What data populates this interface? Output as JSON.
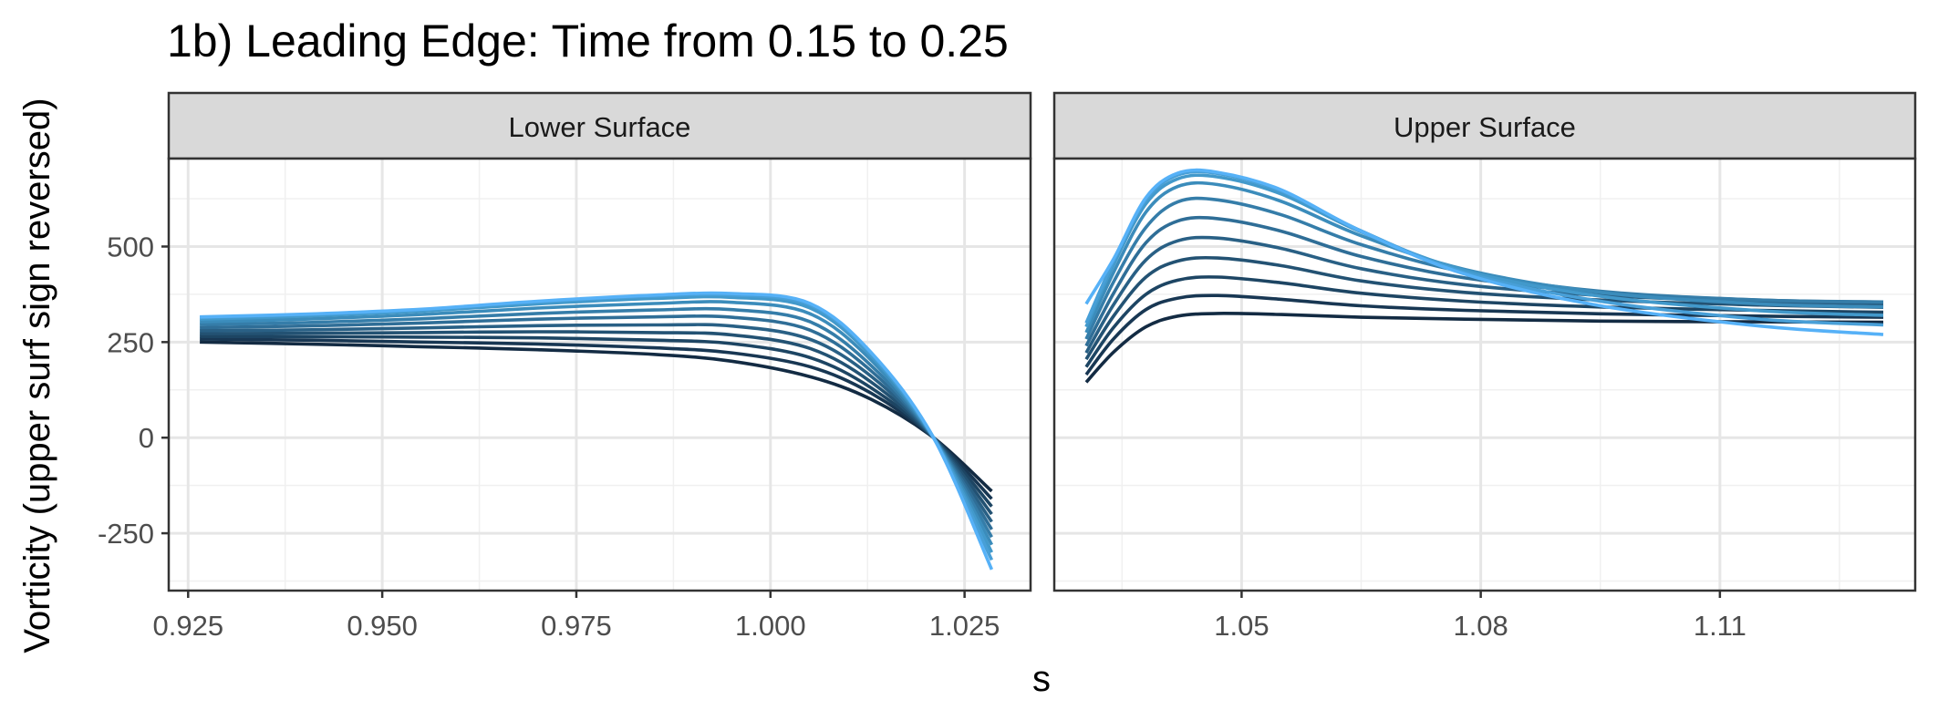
{
  "chart_data": {
    "type": "line",
    "title": "1b) Leading Edge: Time from 0.15 to 0.25",
    "xlabel": "s",
    "ylabel": "Vorticity (upper surf sign reversed)",
    "ylim": [
      -400,
      730
    ],
    "yticks": [
      -250,
      0,
      250,
      500
    ],
    "grid": true,
    "legend": "none",
    "series_colors": [
      "#132B43",
      "#183753",
      "#1D4563",
      "#235273",
      "#296085",
      "#2F6E97",
      "#357DA9",
      "#3B8CBB",
      "#4299CB",
      "#489FD7",
      "#56B1F7"
    ],
    "facets": [
      {
        "label": "Lower Surface",
        "xlim": [
          0.9225,
          1.0335
        ],
        "xticks": [
          0.925,
          0.95,
          0.975,
          1.0,
          1.025
        ],
        "xtick_labels": [
          "0.925",
          "0.950",
          "0.975",
          "1.000",
          "1.025"
        ],
        "x": [
          0.9265,
          0.94,
          0.955,
          0.97,
          0.985,
          0.995,
          1.005,
          1.013,
          1.021,
          1.0285
        ],
        "series": [
          {
            "values": [
              250,
              245,
              238,
              230,
              218,
              200,
              160,
              100,
              0,
              -140
            ]
          },
          {
            "values": [
              258,
              255,
              250,
              245,
              235,
              222,
              186,
              116,
              0,
              -160
            ]
          },
          {
            "values": [
              265,
              264,
              263,
              261,
              255,
              246,
              210,
              130,
              0,
              -180
            ]
          },
          {
            "values": [
              272,
              273,
              275,
              277,
              275,
              269,
              234,
              145,
              0,
              -200
            ]
          },
          {
            "values": [
              280,
              282,
              287,
              293,
              295,
              292,
              258,
              160,
              0,
              -220
            ]
          },
          {
            "values": [
              288,
              292,
              300,
              310,
              316,
              315,
              282,
              174,
              0,
              -240
            ]
          },
          {
            "values": [
              296,
              301,
              311,
              325,
              334,
              335,
              304,
              188,
              0,
              -260
            ]
          },
          {
            "values": [
              303,
              310,
              322,
              339,
              351,
              354,
              325,
              202,
              0,
              -280
            ]
          },
          {
            "values": [
              310,
              318,
              331,
              350,
              364,
              367,
              340,
              213,
              0,
              -300
            ]
          },
          {
            "values": [
              314,
              322,
              335,
              355,
              370,
              373,
              348,
              219,
              0,
              -320
            ]
          },
          {
            "values": [
              316,
              323,
              336,
              357,
              373,
              377,
              352,
              222,
              0,
              -345
            ]
          }
        ]
      },
      {
        "label": "Upper Surface",
        "xlim": [
          1.0265,
          1.1345
        ],
        "xticks": [
          1.05,
          1.08,
          1.11
        ],
        "xtick_labels": [
          "1.05",
          "1.08",
          "1.11"
        ],
        "x": [
          1.0305,
          1.034,
          1.038,
          1.042,
          1.047,
          1.055,
          1.065,
          1.078,
          1.095,
          1.115,
          1.1305
        ],
        "series": [
          {
            "values": [
              145,
              225,
              290,
              318,
              325,
              322,
              315,
              310,
              305,
              303,
              302
            ]
          },
          {
            "values": [
              165,
              260,
              335,
              365,
              372,
              362,
              345,
              333,
              324,
              318,
              315
            ]
          },
          {
            "values": [
              185,
              290,
              375,
              412,
              420,
              405,
              378,
              357,
              342,
              333,
              328
            ]
          },
          {
            "values": [
              205,
              320,
              420,
              462,
              470,
              450,
              410,
              380,
              360,
              347,
              341
            ]
          },
          {
            "values": [
              222,
              350,
              465,
              515,
              522,
              495,
              442,
              400,
              372,
              356,
              350
            ]
          },
          {
            "values": [
              240,
              380,
              510,
              567,
              573,
              540,
              474,
              418,
              380,
              360,
              355
            ]
          },
          {
            "values": [
              258,
              410,
              550,
              617,
              622,
              583,
              505,
              433,
              383,
              360,
              355
            ]
          },
          {
            "values": [
              275,
              435,
              590,
              657,
              662,
              618,
              528,
              440,
              380,
              350,
              342
            ]
          },
          {
            "values": [
              290,
              455,
              612,
              677,
              682,
              637,
              538,
              437,
              370,
              332,
              320
            ]
          },
          {
            "values": [
              300,
              465,
              622,
              687,
              691,
              645,
              541,
              432,
              357,
              310,
              295
            ]
          },
          {
            "values": [
              350,
              470,
              628,
              692,
              694,
              648,
              540,
              428,
              345,
              292,
              270
            ]
          }
        ]
      }
    ]
  }
}
